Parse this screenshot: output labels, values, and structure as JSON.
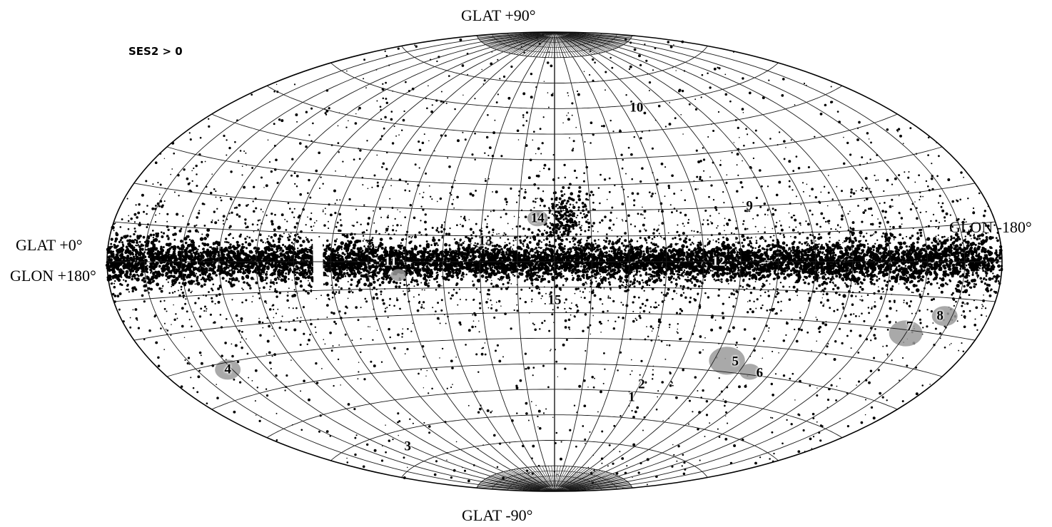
{
  "title": "SES2 > 0",
  "projection": "aitoff",
  "coordinate_system": "galactic",
  "grid": {
    "longitude_step_deg": 15,
    "latitude_step_deg": 10
  },
  "axis_labels": {
    "top": "GLAT +90°",
    "bottom": "GLAT -90°",
    "left_lat": "GLAT +0°",
    "left_lon": "GLON +180°",
    "right_lon": "GLON -180°"
  },
  "colors": {
    "background": "#ffffff",
    "grid": "#1a1a1a",
    "sources": "#000000",
    "regions": "#9a9a9a"
  },
  "regions": [
    {
      "id": "1",
      "label": "1",
      "glon": -44,
      "glat": -52
    },
    {
      "id": "2",
      "label": "2",
      "glon": -46,
      "glat": -47
    },
    {
      "id": "3",
      "label": "3",
      "glon": 122,
      "glat": -65
    },
    {
      "id": "4",
      "label": "4",
      "glon": 152,
      "glat": -32
    },
    {
      "id": "5",
      "label": "5",
      "glon": -85,
      "glat": -36
    },
    {
      "id": "6",
      "label": "6",
      "glon": -100,
      "glat": -39
    },
    {
      "id": "7",
      "label": "7",
      "glon": -150,
      "glat": -19
    },
    {
      "id": "8",
      "label": "8",
      "glon": -160,
      "glat": -15
    },
    {
      "id": "9",
      "label": "9",
      "glon": -82,
      "glat": 20
    },
    {
      "id": "10",
      "label": "10",
      "glon": -54,
      "glat": 59
    },
    {
      "id": "11",
      "label": "11",
      "glon": 66,
      "glat": 0
    },
    {
      "id": "12",
      "label": "12",
      "glon": -66,
      "glat": 0
    },
    {
      "id": "13",
      "label": "13",
      "glon": 28,
      "glat": 8
    },
    {
      "id": "14",
      "label": "14",
      "glon": 7,
      "glat": 17
    },
    {
      "id": "15",
      "label": "15",
      "glon": 0,
      "glat": -15
    }
  ],
  "extended_patches": [
    {
      "id": "patch-4",
      "glon": 152,
      "glat": -32,
      "size": 1.0
    },
    {
      "id": "patch-5",
      "glon": -81,
      "glat": -36,
      "size": 1.4
    },
    {
      "id": "patch-6",
      "glon": -95,
      "glat": -39,
      "size": 0.8
    },
    {
      "id": "patch-7",
      "glon": -150,
      "glat": -21,
      "size": 1.3
    },
    {
      "id": "patch-8",
      "glon": -162,
      "glat": -15,
      "size": 1.0
    },
    {
      "id": "patch-11",
      "glon": 63,
      "glat": -5,
      "size": 0.6
    },
    {
      "id": "patch-14",
      "glon": 7,
      "glat": 17,
      "size": 0.8
    }
  ]
}
